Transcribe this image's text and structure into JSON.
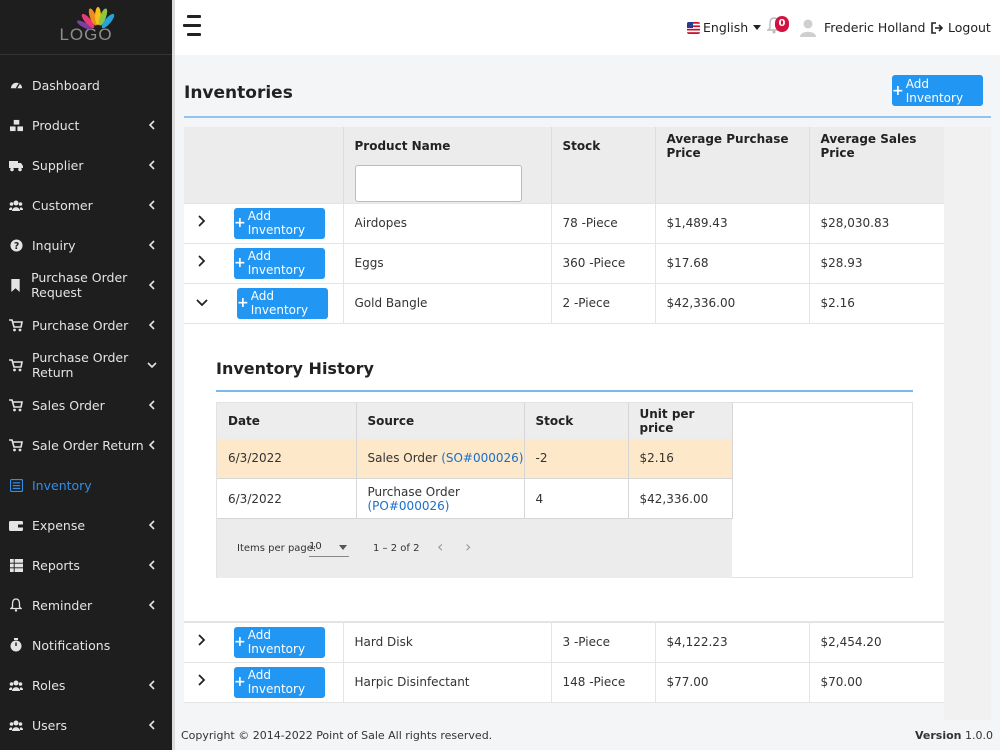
{
  "logo": {
    "text": "LOGO"
  },
  "sidebar": {
    "items": [
      {
        "label": "Dashboard",
        "icon": "dashboard-icon",
        "chevron": "none",
        "active": false
      },
      {
        "label": "Product",
        "icon": "cubes-icon",
        "chevron": "left",
        "active": false
      },
      {
        "label": "Supplier",
        "icon": "truck-icon",
        "chevron": "left",
        "active": false
      },
      {
        "label": "Customer",
        "icon": "users-icon",
        "chevron": "left",
        "active": false
      },
      {
        "label": "Inquiry",
        "icon": "question-icon",
        "chevron": "left",
        "active": false
      },
      {
        "label": "Purchase Order Request",
        "icon": "bookmark-icon",
        "chevron": "left",
        "active": false
      },
      {
        "label": "Purchase Order",
        "icon": "cart-icon",
        "chevron": "left",
        "active": false
      },
      {
        "label": "Purchase Order Return",
        "icon": "cart-icon",
        "chevron": "down",
        "active": false
      },
      {
        "label": "Sales Order",
        "icon": "cart-icon",
        "chevron": "left",
        "active": false
      },
      {
        "label": "Sale Order Return",
        "icon": "cart-icon",
        "chevron": "left",
        "active": false
      },
      {
        "label": "Inventory",
        "icon": "list-icon",
        "chevron": "none",
        "active": true
      },
      {
        "label": "Expense",
        "icon": "wallet-icon",
        "chevron": "left",
        "active": false
      },
      {
        "label": "Reports",
        "icon": "grid-icon",
        "chevron": "left",
        "active": false
      },
      {
        "label": "Reminder",
        "icon": "bell-icon",
        "chevron": "left",
        "active": false
      },
      {
        "label": "Notifications",
        "icon": "stopwatch-icon",
        "chevron": "none",
        "active": false
      },
      {
        "label": "Roles",
        "icon": "users-icon",
        "chevron": "left",
        "active": false
      },
      {
        "label": "Users",
        "icon": "users-icon",
        "chevron": "left",
        "active": false
      }
    ]
  },
  "topbar": {
    "language": "English",
    "notification_count": "0",
    "user_name": "Frederic Holland",
    "logout_label": "Logout"
  },
  "page": {
    "title": "Inventories",
    "add_button_label": "Add Inventory"
  },
  "table": {
    "headers": [
      "",
      "Product Name",
      "Stock",
      "Average Purchase Price",
      "Average Sales Price"
    ],
    "filter_value": "",
    "row_button_label": "Add Inventory",
    "rows_before": [
      {
        "name": "Airdopes",
        "stock": "78 -Piece",
        "avg_purchase": "$1,489.43",
        "avg_sales": "$28,030.83"
      },
      {
        "name": "Eggs",
        "stock": "360 -Piece",
        "avg_purchase": "$17.68",
        "avg_sales": "$28.93"
      },
      {
        "name": "Gold Bangle",
        "stock": "2 -Piece",
        "avg_purchase": "$42,336.00",
        "avg_sales": "$2.16"
      }
    ],
    "rows_after": [
      {
        "name": "Hard Disk",
        "stock": "3 -Piece",
        "avg_purchase": "$4,122.23",
        "avg_sales": "$2,454.20"
      },
      {
        "name": "Harpic Disinfectant",
        "stock": "148 -Piece",
        "avg_purchase": "$77.00",
        "avg_sales": "$70.00"
      }
    ]
  },
  "history": {
    "title": "Inventory History",
    "headers": [
      "Date",
      "Source",
      "Stock",
      "Unit per price"
    ],
    "rows": [
      {
        "date": "6/3/2022",
        "source": "Sales Order",
        "ref": "(SO#000026)",
        "stock": "-2",
        "unit_price": "$2.16"
      },
      {
        "date": "6/3/2022",
        "source": "Purchase Order",
        "ref": "(PO#000026)",
        "stock": "4",
        "unit_price": "$42,336.00"
      }
    ],
    "pager": {
      "items_per_page_label": "Items per page:",
      "items_per_page_value": "10",
      "range": "1 – 2 of 2"
    }
  },
  "footer": {
    "copyright": "Copyright © 2014-2022 Point of Sale All rights reserved.",
    "version_label": "Version",
    "version_value": "1.0.0"
  },
  "colors": {
    "accent": "#2196f3",
    "sidebar_bg": "#1e1e1e",
    "highlight_row": "#fde8c9",
    "badge": "#d3123f"
  }
}
